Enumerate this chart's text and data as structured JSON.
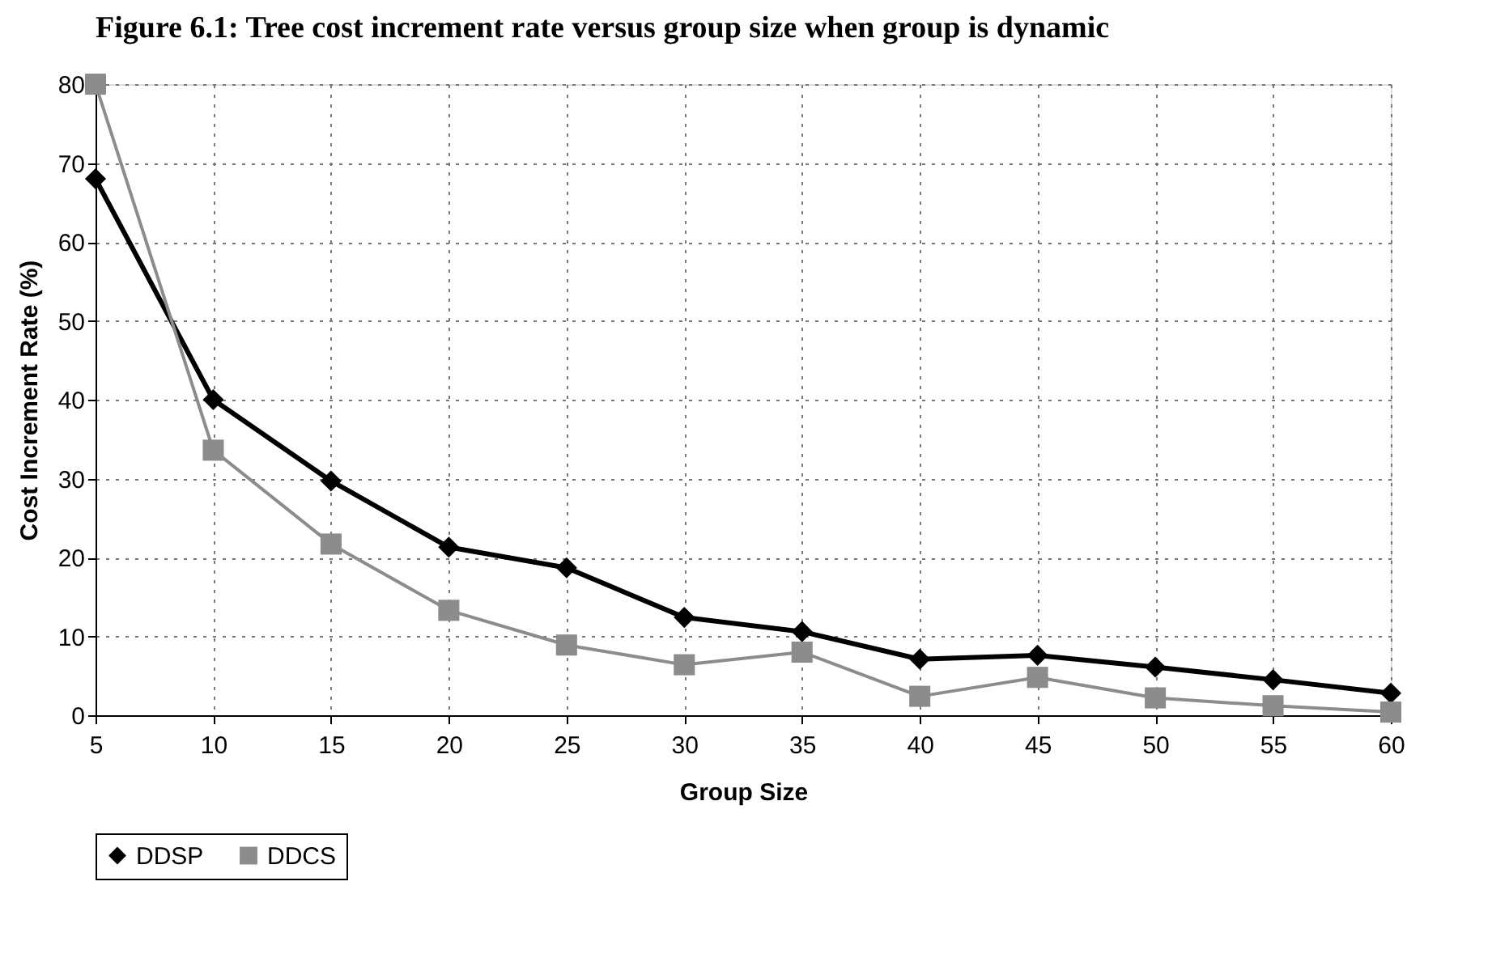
{
  "chart_data": {
    "type": "line",
    "title": "Figure 6.1: Tree cost increment rate versus group size when group is dynamic",
    "xlabel": "Group Size",
    "ylabel": "Cost Increment Rate (%)",
    "x": [
      5,
      10,
      15,
      20,
      25,
      30,
      35,
      40,
      45,
      50,
      55,
      60
    ],
    "series": [
      {
        "name": "DDSP",
        "color": "#000000",
        "marker": "diamond",
        "values": [
          68,
          40,
          29.7,
          21.3,
          18.7,
          12.4,
          10.6,
          7.1,
          7.6,
          6.1,
          4.5,
          2.8
        ]
      },
      {
        "name": "DDCS",
        "color": "#8c8c8c",
        "marker": "square",
        "values": [
          80,
          33.6,
          21.7,
          13.3,
          8.9,
          6.4,
          8.0,
          2.4,
          4.8,
          2.2,
          1.2,
          0.4
        ]
      }
    ],
    "xlim": [
      5,
      60
    ],
    "xticks": [
      5,
      10,
      15,
      20,
      25,
      30,
      35,
      40,
      45,
      50,
      55,
      60
    ],
    "ylim": [
      0,
      80
    ],
    "yticks": [
      0,
      10,
      20,
      30,
      40,
      50,
      60,
      70,
      80
    ],
    "grid": true,
    "legend": "bottom",
    "line_style": "solid"
  }
}
